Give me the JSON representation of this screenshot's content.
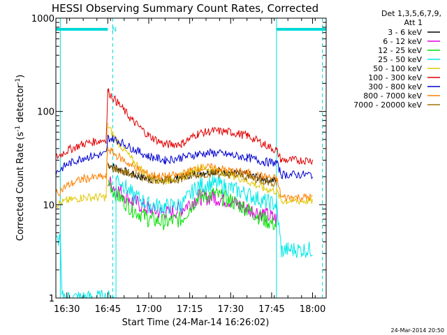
{
  "chart_data": {
    "type": "line",
    "title": "HESSI Observing Summary Count Rates, Corrected",
    "xlabel": "Start Time (24-Mar-14 16:26:02)",
    "ylabel_main": "Corrected Count Rate (s",
    "ylabel_sup1": "-1",
    "ylabel_mid": " detector",
    "ylabel_sup2": "-1",
    "ylabel_end": ")",
    "y_scale": "log",
    "ylim": [
      1,
      1000
    ],
    "xlim_minutes": [
      16.433,
      18.083
    ],
    "x_ticks": [
      {
        "t": 16.5,
        "label": "16:30"
      },
      {
        "t": 16.75,
        "label": "16:45"
      },
      {
        "t": 17.0,
        "label": "17:00"
      },
      {
        "t": 17.25,
        "label": "17:15"
      },
      {
        "t": 17.5,
        "label": "17:30"
      },
      {
        "t": 17.75,
        "label": "17:45"
      },
      {
        "t": 18.0,
        "label": "18:00"
      }
    ],
    "y_ticks": [
      {
        "v": 1,
        "label": "1"
      },
      {
        "v": 10,
        "label": "10"
      },
      {
        "v": 100,
        "label": "100"
      },
      {
        "v": 1000,
        "label": "1000"
      }
    ],
    "legend_header": [
      "Det 1,3,5,6,7,9,",
      "Att 1"
    ],
    "legend_placement": "right",
    "series": [
      {
        "name": "3 - 6 keV",
        "color": "#000000",
        "points": [
          [
            16.75,
            27
          ],
          [
            16.8,
            25
          ],
          [
            16.9,
            21
          ],
          [
            17.0,
            19
          ],
          [
            17.1,
            18
          ],
          [
            17.2,
            20
          ],
          [
            17.3,
            22
          ],
          [
            17.4,
            23
          ],
          [
            17.5,
            22
          ],
          [
            17.6,
            21
          ],
          [
            17.7,
            19
          ],
          [
            17.78,
            18
          ]
        ]
      },
      {
        "name": "6 - 12 keV",
        "color": "#e000e0",
        "points": [
          [
            16.75,
            18
          ],
          [
            16.8,
            15
          ],
          [
            16.9,
            11
          ],
          [
            17.0,
            9
          ],
          [
            17.1,
            8
          ],
          [
            17.2,
            9
          ],
          [
            17.3,
            12
          ],
          [
            17.4,
            12
          ],
          [
            17.5,
            11
          ],
          [
            17.6,
            9
          ],
          [
            17.7,
            8
          ],
          [
            17.78,
            7
          ]
        ]
      },
      {
        "name": "12 - 25 keV",
        "color": "#00e000",
        "points": [
          [
            16.75,
            18
          ],
          [
            16.8,
            13
          ],
          [
            16.9,
            9
          ],
          [
            17.0,
            7
          ],
          [
            17.1,
            6.5
          ],
          [
            17.2,
            7
          ],
          [
            17.3,
            12
          ],
          [
            17.4,
            13
          ],
          [
            17.5,
            11
          ],
          [
            17.6,
            9
          ],
          [
            17.7,
            7
          ],
          [
            17.78,
            6
          ]
        ]
      },
      {
        "name": "25 - 50 keV",
        "color": "#00e8e8",
        "points": [
          [
            16.433,
            4
          ],
          [
            16.46,
            4.5
          ],
          [
            16.47,
            1
          ],
          [
            16.8,
            1
          ],
          [
            16.8,
            20
          ],
          [
            16.85,
            16
          ],
          [
            16.9,
            13
          ],
          [
            17.0,
            10
          ],
          [
            17.1,
            9.5
          ],
          [
            17.2,
            10
          ],
          [
            17.3,
            16
          ],
          [
            17.4,
            17
          ],
          [
            17.5,
            15
          ],
          [
            17.6,
            13
          ],
          [
            17.7,
            11
          ],
          [
            17.78,
            10
          ],
          [
            17.81,
            3.2
          ],
          [
            17.85,
            3.3
          ],
          [
            18.0,
            3.3
          ]
        ]
      },
      {
        "name": "50 - 100 keV",
        "color": "#e0c800",
        "points": [
          [
            16.433,
            10
          ],
          [
            16.5,
            11
          ],
          [
            16.6,
            12
          ],
          [
            16.74,
            12
          ],
          [
            16.75,
            70
          ],
          [
            16.8,
            50
          ],
          [
            16.9,
            30
          ],
          [
            17.0,
            20
          ],
          [
            17.1,
            18
          ],
          [
            17.2,
            20
          ],
          [
            17.3,
            25
          ],
          [
            17.4,
            24
          ],
          [
            17.5,
            21
          ],
          [
            17.6,
            18
          ],
          [
            17.7,
            15
          ],
          [
            17.78,
            14
          ],
          [
            17.81,
            11
          ],
          [
            18.0,
            11
          ]
        ]
      },
      {
        "name": "100 - 300 keV",
        "color": "#e00000",
        "points": [
          [
            16.433,
            32
          ],
          [
            16.5,
            38
          ],
          [
            16.6,
            45
          ],
          [
            16.74,
            50
          ],
          [
            16.75,
            165
          ],
          [
            16.8,
            130
          ],
          [
            16.9,
            80
          ],
          [
            17.0,
            55
          ],
          [
            17.1,
            44
          ],
          [
            17.2,
            45
          ],
          [
            17.3,
            58
          ],
          [
            17.4,
            62
          ],
          [
            17.5,
            60
          ],
          [
            17.6,
            55
          ],
          [
            17.7,
            45
          ],
          [
            17.78,
            38
          ],
          [
            17.81,
            30
          ],
          [
            18.0,
            30
          ]
        ]
      },
      {
        "name": "300 - 800 keV",
        "color": "#0000d0",
        "points": [
          [
            16.433,
            22
          ],
          [
            16.5,
            27
          ],
          [
            16.6,
            32
          ],
          [
            16.74,
            35
          ],
          [
            16.75,
            52
          ],
          [
            16.8,
            50
          ],
          [
            16.9,
            40
          ],
          [
            17.0,
            33
          ],
          [
            17.1,
            30
          ],
          [
            17.2,
            32
          ],
          [
            17.3,
            35
          ],
          [
            17.4,
            36
          ],
          [
            17.5,
            34
          ],
          [
            17.6,
            32
          ],
          [
            17.7,
            29
          ],
          [
            17.78,
            28
          ],
          [
            17.81,
            21
          ],
          [
            18.0,
            21
          ]
        ]
      },
      {
        "name": "800 - 7000 keV",
        "color": "#ff8000",
        "points": [
          [
            16.433,
            13
          ],
          [
            16.5,
            16
          ],
          [
            16.6,
            19
          ],
          [
            16.74,
            20
          ],
          [
            16.75,
            40
          ],
          [
            16.8,
            34
          ],
          [
            16.9,
            26
          ],
          [
            17.0,
            21
          ],
          [
            17.1,
            20
          ],
          [
            17.2,
            21
          ],
          [
            17.3,
            25
          ],
          [
            17.4,
            25
          ],
          [
            17.5,
            23
          ],
          [
            17.6,
            22
          ],
          [
            17.7,
            20
          ],
          [
            17.78,
            19
          ],
          [
            17.81,
            12
          ],
          [
            18.0,
            12
          ]
        ]
      },
      {
        "name": "7000 - 20000 keV",
        "color": "#a07000",
        "points": [
          [
            16.75,
            26
          ],
          [
            16.8,
            24
          ],
          [
            16.9,
            21
          ],
          [
            17.0,
            19
          ],
          [
            17.1,
            18
          ],
          [
            17.2,
            19
          ],
          [
            17.3,
            21
          ],
          [
            17.4,
            22
          ],
          [
            17.5,
            21
          ],
          [
            17.6,
            20
          ],
          [
            17.7,
            18
          ],
          [
            17.78,
            17
          ]
        ]
      }
    ],
    "attenuator_bars": [
      {
        "from": 16.433,
        "to": 16.75,
        "label": "N"
      },
      {
        "from": 17.78,
        "to": 18.08,
        "label": ""
      }
    ],
    "dashed_lines": [
      16.78,
      18.06
    ],
    "solid_lines": [
      16.46,
      17.78
    ]
  },
  "timestamp": "24-Mar-2014 20:50"
}
